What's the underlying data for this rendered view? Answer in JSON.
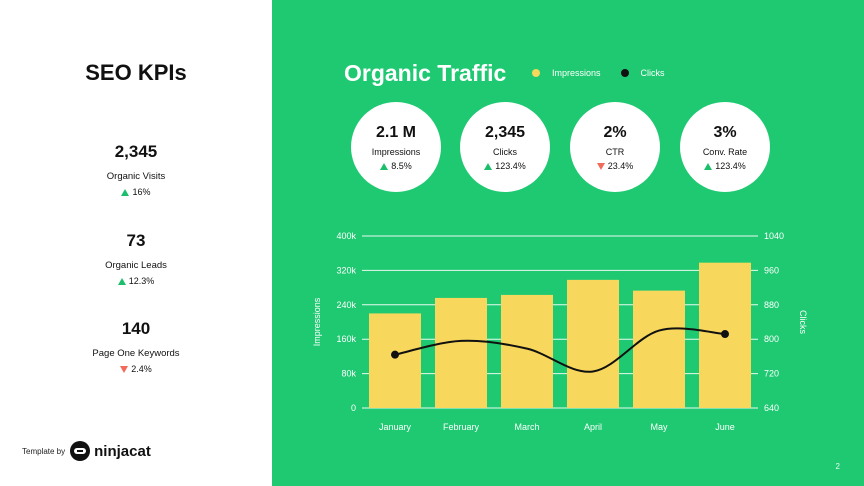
{
  "left": {
    "title": "SEO KPIs",
    "kpis": [
      {
        "value": "2,345",
        "label": "Organic Visits",
        "change": "16%",
        "direction": "up"
      },
      {
        "value": "73",
        "label": "Organic Leads",
        "change": "12.3%",
        "direction": "up"
      },
      {
        "value": "140",
        "label": "Page One Keywords",
        "change": "2.4%",
        "direction": "down"
      }
    ]
  },
  "brand": {
    "prefix": "Template by",
    "name": "ninjacat"
  },
  "right": {
    "title": "Organic Traffic",
    "background": "#1ec971",
    "metrics": [
      {
        "value": "2.1 M",
        "label": "Impressions",
        "change": "8.5%",
        "direction": "up"
      },
      {
        "value": "2,345",
        "label": "Clicks",
        "change": "123.4%",
        "direction": "up"
      },
      {
        "value": "2%",
        "label": "CTR",
        "change": "23.4%",
        "direction": "down"
      },
      {
        "value": "3%",
        "label": "Conv. Rate",
        "change": "123.4%",
        "direction": "up"
      }
    ]
  },
  "page_number": "2",
  "chart_data": {
    "type": "bar",
    "categories": [
      "January",
      "February",
      "March",
      "April",
      "May",
      "June"
    ],
    "series": [
      {
        "name": "Impressions",
        "type": "bar",
        "axis": "left",
        "color": "#f7d75c",
        "values": [
          220000,
          256000,
          263000,
          298000,
          273000,
          338000
        ]
      },
      {
        "name": "Clicks",
        "type": "line",
        "axis": "right",
        "color": "#111111",
        "values": [
          764,
          796,
          778,
          725,
          820,
          812
        ]
      }
    ],
    "ylabel": "Impressions",
    "y2label": "Clicks",
    "ylim": [
      0,
      400000
    ],
    "y2lim": [
      640,
      1040
    ],
    "yticks": [
      "0",
      "80k",
      "160k",
      "240k",
      "320k",
      "400k"
    ],
    "y2ticks": [
      "640",
      "720",
      "800",
      "880",
      "960",
      "1040"
    ],
    "grid": true,
    "legend": "top"
  }
}
